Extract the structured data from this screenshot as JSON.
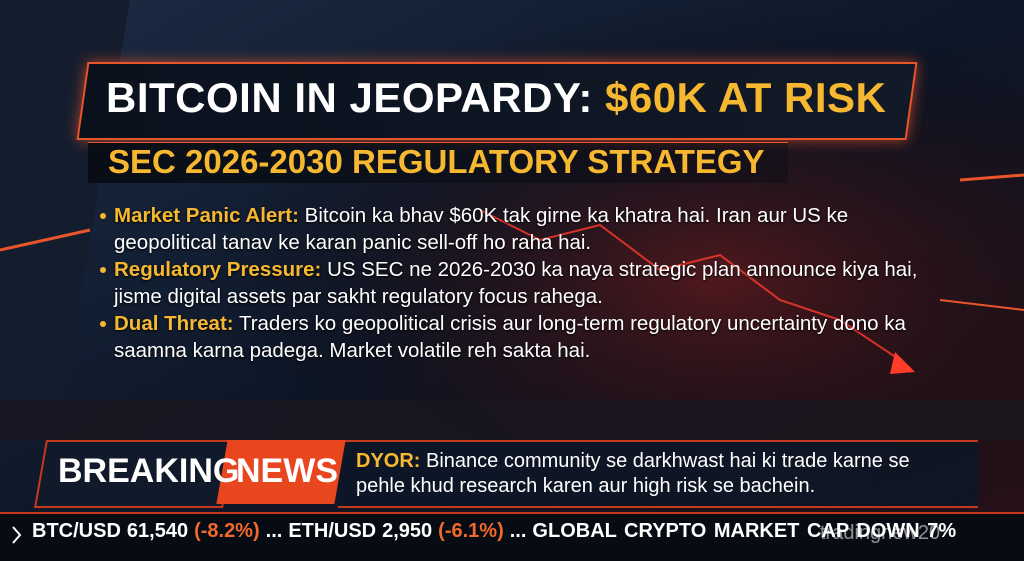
{
  "headline": {
    "title_parts": [
      "BITCOIN IN JEOPARDY:",
      "$60K AT RISK"
    ],
    "subtitle": "SEC 2026-2030 REGULATORY STRATEGY"
  },
  "bullets": [
    {
      "label": "Market Panic Alert:",
      "text": "Bitcoin ka bhav $60K tak girne ka khatra hai. Iran aur US ke geopolitical tanav ke karan panic sell-off ho raha hai."
    },
    {
      "label": "Regulatory Pressure:",
      "text": "US SEC ne 2026-2030 ka naya strategic plan announce kiya hai, jisme digital assets par sakht regulatory focus rahega."
    },
    {
      "label": "Dual Threat:",
      "text": "Traders ko geopolitical crisis aur long-term regulatory uncertainty dono ka saamna karna padega. Market volatile reh sakta hai."
    }
  ],
  "breaking": {
    "word1": "BREAKING",
    "word2": "NEWS",
    "dyor_label": "DYOR:",
    "dyor_text": "Binance community se darkhwast hai ki trade karne se pehle khud research karen aur high risk se bachein."
  },
  "ticker": {
    "items": [
      {
        "name": "BTC/USD",
        "price": "61,540",
        "change": "(-8.2%)"
      },
      {
        "name": "ETH/USD",
        "price": "2,950",
        "change": "(-6.1%)"
      }
    ],
    "separator": "...",
    "closing": "GLOBAL CRYPTO MARKET CAP DOWN 7%"
  },
  "watermark": "tradingnew20"
}
